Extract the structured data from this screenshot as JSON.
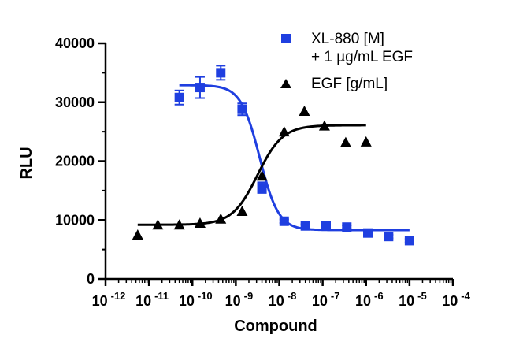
{
  "chart_data": {
    "type": "scatter",
    "xlabel": "Compound",
    "ylabel": "RLU",
    "x_scale": "log",
    "xlim": [
      1e-12,
      0.0001
    ],
    "ylim": [
      0,
      40000
    ],
    "x_tick_labels": [
      {
        "base": "10",
        "exp": "-12"
      },
      {
        "base": "10",
        "exp": "-11"
      },
      {
        "base": "10",
        "exp": "-10"
      },
      {
        "base": "10",
        "exp": "-9"
      },
      {
        "base": "10",
        "exp": "-8"
      },
      {
        "base": "10",
        "exp": "-7"
      },
      {
        "base": "10",
        "exp": "-6"
      },
      {
        "base": "10",
        "exp": "-5"
      },
      {
        "base": "10",
        "exp": "-4"
      }
    ],
    "y_tick_labels": [
      "0",
      "10000",
      "20000",
      "30000",
      "40000"
    ],
    "legend": {
      "position": "top-right",
      "entries": [
        {
          "lines": [
            "XL-880 [M]",
            "+ 1 µg/mL  EGF"
          ],
          "marker": "square"
        },
        {
          "lines": [
            "EGF [g/mL]"
          ],
          "marker": "triangle"
        }
      ]
    },
    "series": [
      {
        "marker": "square",
        "color": "#1f3fe0",
        "x": [
          5e-11,
          1.5e-10,
          4.5e-10,
          1.4e-09,
          4e-09,
          1.3e-08,
          4e-08,
          1.2e-07,
          3.6e-07,
          1.1e-06,
          3.3e-06,
          1e-05
        ],
        "y": [
          30800,
          32500,
          35000,
          28800,
          15500,
          9800,
          9000,
          9000,
          8800,
          7800,
          7200,
          6500
        ],
        "error": [
          1200,
          1800,
          1200,
          1000,
          900,
          300,
          300,
          300,
          300,
          300,
          300,
          300
        ],
        "fit": {
          "bottom": 8300,
          "top": 32900,
          "log_ec50": -8.45,
          "hill": -2.0
        }
      },
      {
        "marker": "triangle",
        "color": "#000000",
        "x": [
          5.5e-12,
          1.6e-11,
          5e-11,
          1.5e-10,
          4.5e-10,
          1.4e-09,
          4e-09,
          1.3e-08,
          3.8e-08,
          1.1e-07,
          3.4e-07,
          1e-06
        ],
        "y": [
          7500,
          9200,
          9200,
          9500,
          10200,
          11500,
          17500,
          25000,
          28500,
          26000,
          23200,
          23300
        ],
        "fit": {
          "bottom": 9200,
          "top": 26100,
          "log_ec50": -8.5,
          "hill": 1.5
        }
      }
    ]
  }
}
